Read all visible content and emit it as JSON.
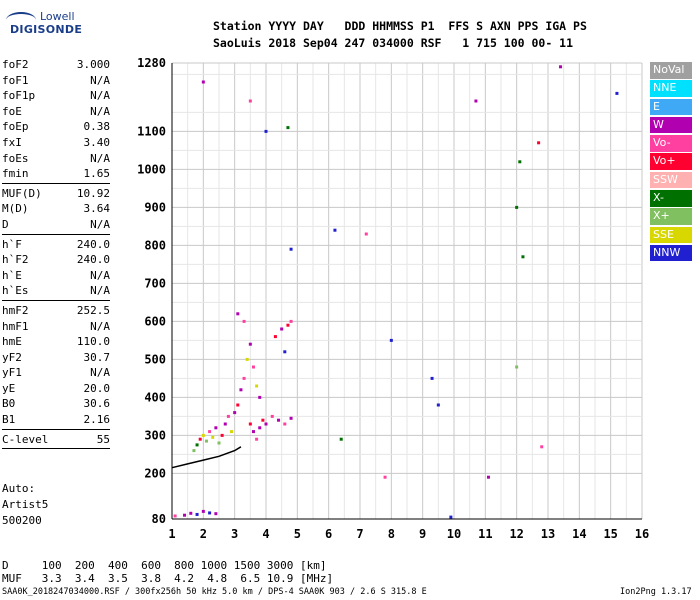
{
  "logo": {
    "line1": "Lowell",
    "line2": "DIGISONDE"
  },
  "header": {
    "line1": "Station YYYY DAY   DDD HHMMSS P1  FFS S AXN PPS IGA PS",
    "line2": "SaoLuis 2018 Sep04 247 034000 RSF   1 715 100 00- 11"
  },
  "params": [
    [
      {
        "k": "foF2",
        "v": "3.000"
      },
      {
        "k": "foF1",
        "v": "N/A"
      },
      {
        "k": "foF1p",
        "v": "N/A"
      },
      {
        "k": "foE",
        "v": "N/A"
      },
      {
        "k": "foEp",
        "v": "0.38"
      },
      {
        "k": "fxI",
        "v": "3.40"
      },
      {
        "k": "foEs",
        "v": "N/A"
      },
      {
        "k": "fmin",
        "v": "1.65"
      }
    ],
    [
      {
        "k": "MUF(D)",
        "v": "10.92"
      },
      {
        "k": "M(D)",
        "v": "3.64"
      },
      {
        "k": "D",
        "v": "N/A"
      }
    ],
    [
      {
        "k": "h`F",
        "v": "240.0"
      },
      {
        "k": "h`F2",
        "v": "240.0"
      },
      {
        "k": "h`E",
        "v": "N/A"
      },
      {
        "k": "h`Es",
        "v": "N/A"
      }
    ],
    [
      {
        "k": "hmF2",
        "v": "252.5"
      },
      {
        "k": "hmF1",
        "v": "N/A"
      },
      {
        "k": "hmE",
        "v": "110.0"
      },
      {
        "k": "yF2",
        "v": "30.7"
      },
      {
        "k": "yF1",
        "v": "N/A"
      },
      {
        "k": "yE",
        "v": "20.0"
      },
      {
        "k": "B0",
        "v": "30.6"
      },
      {
        "k": "B1",
        "v": "2.16"
      }
    ],
    [
      {
        "k": "C-level",
        "v": "55"
      }
    ]
  ],
  "auto": {
    "line1": "Auto:",
    "line2": "Artist5",
    "line3": "500200"
  },
  "legend": [
    {
      "label": "NoVal",
      "color": "#a0a0a0"
    },
    {
      "label": "NNE",
      "color": "#00e0ff"
    },
    {
      "label": "E",
      "color": "#3fa9f5"
    },
    {
      "label": "W",
      "color": "#b000b0"
    },
    {
      "label": "Vo-",
      "color": "#ff40a0"
    },
    {
      "label": "Vo+",
      "color": "#ff0030"
    },
    {
      "label": "SSW",
      "color": "#ffb0b0"
    },
    {
      "label": "X-",
      "color": "#007000"
    },
    {
      "label": "X+",
      "color": "#80c060"
    },
    {
      "label": "SSE",
      "color": "#d8d800"
    },
    {
      "label": "NNW",
      "color": "#2020d0"
    }
  ],
  "bottom": {
    "line1": "D     100  200  400  600  800 1000 1500 3000 [km]",
    "line2": "MUF   3.3  3.4  3.5  3.8  4.2  4.8  6.5 10.9 [MHz]"
  },
  "footer": {
    "left": "SAA0K_2018247034000.RSF / 300fx256h 50 kHz 5.0 km / DPS-4 SAA0K 903 / 2.6 S 315.8 E",
    "right": "Ion2Png 1.3.17"
  },
  "chart_data": {
    "type": "scatter",
    "xlim": [
      1,
      16
    ],
    "ylim": [
      80,
      1280
    ],
    "x_ticks": [
      1,
      2,
      3,
      4,
      5,
      6,
      7,
      8,
      9,
      10,
      11,
      12,
      13,
      14,
      15,
      16
    ],
    "y_ticks": [
      80,
      200,
      300,
      400,
      500,
      600,
      700,
      800,
      900,
      1000,
      1100,
      1280
    ],
    "grid": true,
    "legend_position": "right",
    "trace": {
      "name": "",
      "x": [
        1.0,
        1.5,
        2.0,
        2.5,
        3.0,
        3.2
      ],
      "y": [
        215,
        225,
        235,
        245,
        260,
        270
      ]
    },
    "points": [
      {
        "x": 1.4,
        "y": 90,
        "c": "#b000b0"
      },
      {
        "x": 1.6,
        "y": 95,
        "c": "#b000b0"
      },
      {
        "x": 1.8,
        "y": 92,
        "c": "#2020d0"
      },
      {
        "x": 2.0,
        "y": 100,
        "c": "#b000b0"
      },
      {
        "x": 2.2,
        "y": 96,
        "c": "#2020d0"
      },
      {
        "x": 2.4,
        "y": 94,
        "c": "#b000b0"
      },
      {
        "x": 1.1,
        "y": 88,
        "c": "#ff40a0"
      },
      {
        "x": 1.7,
        "y": 260,
        "c": "#80c060"
      },
      {
        "x": 1.8,
        "y": 275,
        "c": "#007000"
      },
      {
        "x": 1.9,
        "y": 290,
        "c": "#ff0030"
      },
      {
        "x": 2.0,
        "y": 300,
        "c": "#d8d800"
      },
      {
        "x": 2.1,
        "y": 285,
        "c": "#80c060"
      },
      {
        "x": 2.2,
        "y": 310,
        "c": "#ff40a0"
      },
      {
        "x": 2.3,
        "y": 295,
        "c": "#d8d800"
      },
      {
        "x": 2.4,
        "y": 320,
        "c": "#b000b0"
      },
      {
        "x": 2.5,
        "y": 280,
        "c": "#80c060"
      },
      {
        "x": 2.6,
        "y": 300,
        "c": "#ff0030"
      },
      {
        "x": 2.7,
        "y": 330,
        "c": "#b000b0"
      },
      {
        "x": 2.8,
        "y": 350,
        "c": "#ff40a0"
      },
      {
        "x": 2.9,
        "y": 310,
        "c": "#d8d800"
      },
      {
        "x": 3.0,
        "y": 360,
        "c": "#b000b0"
      },
      {
        "x": 3.1,
        "y": 380,
        "c": "#ff0030"
      },
      {
        "x": 3.2,
        "y": 420,
        "c": "#b000b0"
      },
      {
        "x": 3.3,
        "y": 450,
        "c": "#ff40a0"
      },
      {
        "x": 3.4,
        "y": 500,
        "c": "#d8d800"
      },
      {
        "x": 3.5,
        "y": 540,
        "c": "#b000b0"
      },
      {
        "x": 3.6,
        "y": 480,
        "c": "#ff40a0"
      },
      {
        "x": 3.7,
        "y": 430,
        "c": "#d8d800"
      },
      {
        "x": 3.8,
        "y": 400,
        "c": "#b000b0"
      },
      {
        "x": 3.5,
        "y": 330,
        "c": "#ff0030"
      },
      {
        "x": 3.6,
        "y": 310,
        "c": "#b000b0"
      },
      {
        "x": 3.7,
        "y": 290,
        "c": "#ff40a0"
      },
      {
        "x": 3.8,
        "y": 320,
        "c": "#b000b0"
      },
      {
        "x": 3.9,
        "y": 340,
        "c": "#ff0030"
      },
      {
        "x": 4.0,
        "y": 330,
        "c": "#b000b0"
      },
      {
        "x": 4.2,
        "y": 350,
        "c": "#ff40a0"
      },
      {
        "x": 4.4,
        "y": 340,
        "c": "#b000b0"
      },
      {
        "x": 4.6,
        "y": 330,
        "c": "#ff40a0"
      },
      {
        "x": 4.8,
        "y": 345,
        "c": "#b000b0"
      },
      {
        "x": 4.5,
        "y": 580,
        "c": "#b000b0"
      },
      {
        "x": 4.7,
        "y": 590,
        "c": "#ff0030"
      },
      {
        "x": 4.8,
        "y": 600,
        "c": "#ff40a0"
      },
      {
        "x": 4.3,
        "y": 560,
        "c": "#ff0030"
      },
      {
        "x": 3.3,
        "y": 600,
        "c": "#ff40a0"
      },
      {
        "x": 3.1,
        "y": 620,
        "c": "#b000b0"
      },
      {
        "x": 4.7,
        "y": 1110,
        "c": "#007000"
      },
      {
        "x": 4.0,
        "y": 1100,
        "c": "#2020d0"
      },
      {
        "x": 3.5,
        "y": 1180,
        "c": "#ff40a0"
      },
      {
        "x": 2.0,
        "y": 1230,
        "c": "#b000b0"
      },
      {
        "x": 4.8,
        "y": 790,
        "c": "#2020d0"
      },
      {
        "x": 4.6,
        "y": 520,
        "c": "#2020d0"
      },
      {
        "x": 6.2,
        "y": 840,
        "c": "#2020d0"
      },
      {
        "x": 7.2,
        "y": 830,
        "c": "#ff40a0"
      },
      {
        "x": 8.0,
        "y": 550,
        "c": "#2020d0"
      },
      {
        "x": 9.3,
        "y": 450,
        "c": "#2020d0"
      },
      {
        "x": 9.5,
        "y": 380,
        "c": "#2020d0"
      },
      {
        "x": 10.7,
        "y": 1180,
        "c": "#b000b0"
      },
      {
        "x": 12.1,
        "y": 1020,
        "c": "#007000"
      },
      {
        "x": 12.0,
        "y": 900,
        "c": "#007000"
      },
      {
        "x": 12.7,
        "y": 1070,
        "c": "#ff0030"
      },
      {
        "x": 13.4,
        "y": 1270,
        "c": "#b000b0"
      },
      {
        "x": 15.2,
        "y": 1200,
        "c": "#2020d0"
      },
      {
        "x": 12.2,
        "y": 770,
        "c": "#007000"
      },
      {
        "x": 11.1,
        "y": 190,
        "c": "#b000b0"
      },
      {
        "x": 12.8,
        "y": 270,
        "c": "#ff40a0"
      },
      {
        "x": 7.8,
        "y": 190,
        "c": "#ff40a0"
      },
      {
        "x": 9.9,
        "y": 85,
        "c": "#2020d0"
      },
      {
        "x": 6.4,
        "y": 290,
        "c": "#007000"
      },
      {
        "x": 12.0,
        "y": 480,
        "c": "#80c060"
      }
    ]
  }
}
